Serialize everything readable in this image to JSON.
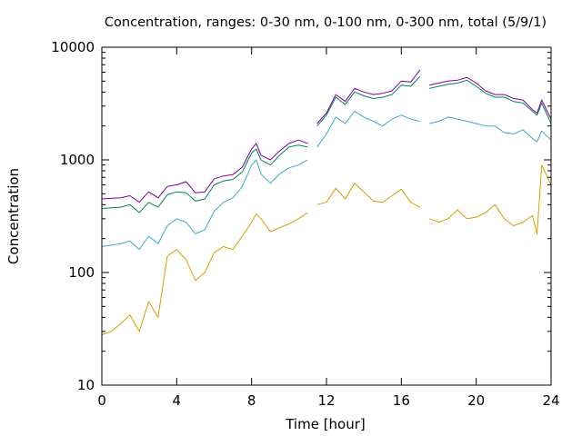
{
  "chart_data": {
    "type": "line",
    "title": "Concentration, ranges: 0-30 nm, 0-100 nm, 0-300 nm, total (5/9/1)",
    "xlabel": "Time [hour]",
    "ylabel": "Concentration",
    "xlim": [
      0,
      24
    ],
    "ylim": [
      10,
      10000
    ],
    "yscale": "log",
    "grid": false,
    "legend": "none",
    "x_ticks": [
      0,
      4,
      8,
      12,
      16,
      20,
      24
    ],
    "x_tick_labels": [
      "0",
      "4",
      "8",
      "12",
      "16",
      "20",
      "24"
    ],
    "y_ticks": [
      10,
      100,
      1000,
      10000
    ],
    "y_tick_labels": [
      "10",
      "100",
      "1000",
      "10000"
    ],
    "x": [
      0,
      0.5,
      1,
      1.5,
      2,
      2.5,
      3,
      3.5,
      4,
      4.5,
      5,
      5.5,
      6,
      6.5,
      7,
      7.5,
      8,
      8.25,
      8.5,
      9,
      9.5,
      10,
      10.5,
      11,
      11.25,
      11.5,
      12,
      12.5,
      13,
      13.5,
      14,
      14.5,
      15,
      15.5,
      16,
      16.5,
      17,
      17.25,
      17.5,
      18,
      18.5,
      19,
      19.5,
      20,
      20.5,
      21,
      21.5,
      22,
      22.5,
      23,
      23.25,
      23.5,
      24
    ],
    "series": [
      {
        "color": "#d4a000",
        "values": [
          28,
          30,
          35,
          42,
          30,
          55,
          40,
          140,
          160,
          130,
          85,
          100,
          150,
          170,
          160,
          210,
          280,
          330,
          300,
          230,
          250,
          270,
          300,
          340,
          null,
          400,
          420,
          560,
          450,
          620,
          520,
          430,
          420,
          480,
          550,
          420,
          380,
          null,
          300,
          280,
          300,
          360,
          300,
          310,
          340,
          400,
          300,
          260,
          280,
          320,
          220,
          900,
          600
        ]
      },
      {
        "color": "#3fa8c8",
        "values": [
          170,
          175,
          180,
          190,
          160,
          210,
          180,
          260,
          300,
          280,
          220,
          240,
          350,
          420,
          460,
          580,
          900,
          1000,
          750,
          620,
          750,
          850,
          900,
          1000,
          null,
          1300,
          1700,
          2400,
          2100,
          2700,
          2400,
          2200,
          2000,
          2300,
          2500,
          2300,
          2200,
          null,
          2100,
          2200,
          2400,
          2300,
          2200,
          2100,
          2000,
          2000,
          1750,
          1700,
          1850,
          1550,
          1450,
          1800,
          1500
        ]
      },
      {
        "color": "#008060",
        "values": [
          370,
          375,
          380,
          400,
          340,
          420,
          380,
          490,
          520,
          510,
          430,
          450,
          600,
          650,
          670,
          780,
          1150,
          1250,
          1000,
          900,
          1100,
          1300,
          1350,
          1300,
          null,
          2000,
          2500,
          3600,
          3100,
          4000,
          3700,
          3500,
          3600,
          3800,
          4600,
          4500,
          5500,
          null,
          4300,
          4500,
          4700,
          4800,
          5100,
          4500,
          3900,
          3600,
          3600,
          3300,
          3200,
          2700,
          2500,
          3200,
          2100
        ]
      },
      {
        "color": "#8000a0",
        "values": [
          450,
          455,
          460,
          480,
          420,
          520,
          460,
          580,
          600,
          640,
          510,
          520,
          680,
          720,
          740,
          860,
          1250,
          1400,
          1100,
          1000,
          1200,
          1400,
          1500,
          1400,
          null,
          2100,
          2600,
          3800,
          3300,
          4300,
          4000,
          3800,
          3900,
          4100,
          5000,
          4900,
          6300,
          null,
          4600,
          4800,
          5000,
          5100,
          5400,
          4800,
          4100,
          3800,
          3800,
          3500,
          3400,
          2800,
          2600,
          3400,
          2300
        ]
      }
    ]
  }
}
